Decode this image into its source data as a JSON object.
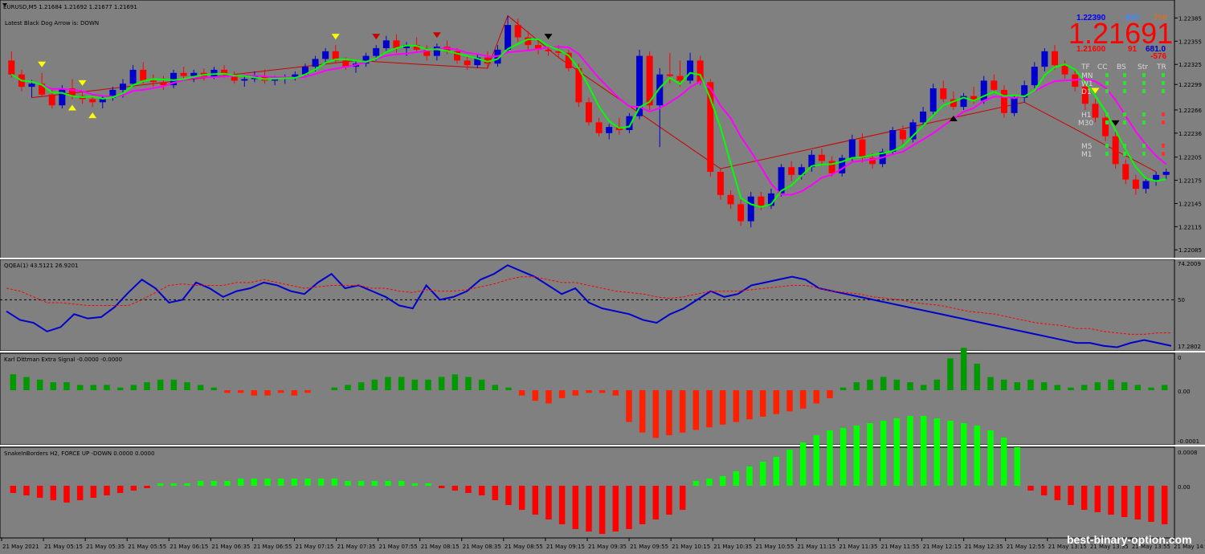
{
  "window": {
    "title": "EURUSD,M5  1.21684 1.21692 1.21677 1.21691",
    "arrow_status": "Latest Black Dog Arrow is:  DOWN"
  },
  "dashboard": {
    "top_values": [
      "1.22390",
      "-800",
      "790"
    ],
    "big_price": "1.21691",
    "second_values": [
      "1.21600",
      "91",
      "681.0"
    ],
    "third_values": [
      "-576"
    ],
    "headers": [
      "TF",
      "CC",
      "BS",
      "Str",
      "TR"
    ],
    "timeframes": [
      "MN",
      "W1",
      "D1",
      "H1",
      "M30",
      "M5",
      "M1"
    ]
  },
  "watermark": "best-binary-option.com",
  "panels": {
    "qqea": {
      "label": "QQEA(1) 43.5121 26.9201",
      "ticks": [
        "74.2009",
        "50",
        "17.2802"
      ]
    },
    "karl": {
      "label": "Karl Dittman Extra Signal -0.0000 -0.0000",
      "ticks": [
        "0",
        "0.00",
        "-0.0001"
      ]
    },
    "snake": {
      "label": "SnakeInBorders H2, FORCE UP -DOWN  0.0000 0.0000",
      "ticks": [
        "0.0008",
        "0.00"
      ]
    }
  },
  "chart_data": [
    {
      "type": "candlestick",
      "symbol": "EURUSD,M5",
      "y_ticks": [
        "1.22385",
        "1.22355",
        "1.22325",
        "1.22299",
        "1.22266",
        "1.22236",
        "1.22205",
        "1.22175",
        "1.22145",
        "1.22115",
        "1.22085"
      ],
      "ylim": [
        1.2208,
        1.224
      ],
      "colors": {
        "bull": "#0000cc",
        "bear": "#ff0000",
        "fast_ma": "#00ff00",
        "slow_ma": "#ff00ff",
        "zigzag": "#cc0000"
      },
      "candles": [
        [
          1.2233,
          1.22342,
          1.22308,
          1.22312
        ],
        [
          1.22312,
          1.22318,
          1.2229,
          1.22296
        ],
        [
          1.22296,
          1.22305,
          1.22282,
          1.223
        ],
        [
          1.223,
          1.22314,
          1.22283,
          1.22286
        ],
        [
          1.22286,
          1.22292,
          1.22268,
          1.22272
        ],
        [
          1.22272,
          1.22298,
          1.22268,
          1.22294
        ],
        [
          1.22294,
          1.22306,
          1.2228,
          1.22284
        ],
        [
          1.22284,
          1.2229,
          1.22274,
          1.2228
        ],
        [
          1.2228,
          1.22286,
          1.2227,
          1.22276
        ],
        [
          1.22276,
          1.22285,
          1.22268,
          1.22282
        ],
        [
          1.22282,
          1.22296,
          1.22278,
          1.22292
        ],
        [
          1.22292,
          1.22306,
          1.22282,
          1.223
        ],
        [
          1.223,
          1.22324,
          1.22296,
          1.22318
        ],
        [
          1.22318,
          1.22328,
          1.223,
          1.22304
        ],
        [
          1.22304,
          1.22312,
          1.22296,
          1.22302
        ],
        [
          1.22302,
          1.2231,
          1.22292,
          1.22298
        ],
        [
          1.22298,
          1.22318,
          1.22294,
          1.22314
        ],
        [
          1.22314,
          1.22322,
          1.22304,
          1.2231
        ],
        [
          1.2231,
          1.22318,
          1.22302,
          1.22314
        ],
        [
          1.22314,
          1.2232,
          1.22304,
          1.22308
        ],
        [
          1.22308,
          1.22322,
          1.22306,
          1.22318
        ],
        [
          1.22318,
          1.22324,
          1.22308,
          1.22312
        ],
        [
          1.22312,
          1.22316,
          1.223,
          1.22304
        ],
        [
          1.22304,
          1.22312,
          1.22296,
          1.22306
        ],
        [
          1.22306,
          1.22316,
          1.22302,
          1.2231
        ],
        [
          1.2231,
          1.22318,
          1.223,
          1.22304
        ],
        [
          1.22304,
          1.2231,
          1.22298,
          1.22306
        ],
        [
          1.22306,
          1.22312,
          1.223,
          1.22308
        ],
        [
          1.22308,
          1.22316,
          1.22304,
          1.22312
        ],
        [
          1.22312,
          1.22326,
          1.22308,
          1.22322
        ],
        [
          1.22322,
          1.22336,
          1.22316,
          1.22332
        ],
        [
          1.22332,
          1.22346,
          1.22326,
          1.22342
        ],
        [
          1.22342,
          1.2235,
          1.22326,
          1.2233
        ],
        [
          1.2233,
          1.22334,
          1.22318,
          1.22322
        ],
        [
          1.22322,
          1.2233,
          1.22314,
          1.22326
        ],
        [
          1.22326,
          1.2234,
          1.22322,
          1.22336
        ],
        [
          1.22336,
          1.2235,
          1.2233,
          1.22346
        ],
        [
          1.22346,
          1.22362,
          1.22342,
          1.22356
        ],
        [
          1.22356,
          1.22364,
          1.2234,
          1.22346
        ],
        [
          1.22346,
          1.22354,
          1.22336,
          1.2235
        ],
        [
          1.2235,
          1.2236,
          1.2234,
          1.22344
        ],
        [
          1.22344,
          1.2235,
          1.2233,
          1.22336
        ],
        [
          1.22336,
          1.22352,
          1.2233,
          1.22348
        ],
        [
          1.22348,
          1.22356,
          1.22338,
          1.22342
        ],
        [
          1.22342,
          1.22346,
          1.22326,
          1.2233
        ],
        [
          1.2233,
          1.22336,
          1.22318,
          1.22324
        ],
        [
          1.22324,
          1.22338,
          1.2232,
          1.22334
        ],
        [
          1.22334,
          1.22342,
          1.2232,
          1.22326
        ],
        [
          1.22326,
          1.2235,
          1.22322,
          1.22344
        ],
        [
          1.22344,
          1.22388,
          1.2234,
          1.22376
        ],
        [
          1.22376,
          1.22384,
          1.22354,
          1.2236
        ],
        [
          1.2236,
          1.22368,
          1.22344,
          1.2235
        ],
        [
          1.2235,
          1.22356,
          1.22338,
          1.22344
        ],
        [
          1.22344,
          1.2235,
          1.22336,
          1.22342
        ],
        [
          1.22342,
          1.2235,
          1.22334,
          1.2234
        ],
        [
          1.2234,
          1.22344,
          1.22316,
          1.2232
        ],
        [
          1.2232,
          1.22326,
          1.2227,
          1.22276
        ],
        [
          1.22276,
          1.22282,
          1.22246,
          1.2225
        ],
        [
          1.2225,
          1.22256,
          1.22232,
          1.22236
        ],
        [
          1.22236,
          1.22248,
          1.22228,
          1.22244
        ],
        [
          1.22244,
          1.22256,
          1.22234,
          1.2224
        ],
        [
          1.2224,
          1.22262,
          1.22236,
          1.22258
        ],
        [
          1.22258,
          1.22344,
          1.22254,
          1.22336
        ],
        [
          1.22336,
          1.22342,
          1.22266,
          1.22272
        ],
        [
          1.22272,
          1.2232,
          1.22218,
          1.22312
        ],
        [
          1.22312,
          1.2234,
          1.223,
          1.2231
        ],
        [
          1.2231,
          1.2233,
          1.22296,
          1.22304
        ],
        [
          1.22304,
          1.2234,
          1.223,
          1.2233
        ],
        [
          1.2233,
          1.22336,
          1.22298,
          1.22302
        ],
        [
          1.22302,
          1.22306,
          1.2218,
          1.22186
        ],
        [
          1.22186,
          1.2219,
          1.2215,
          1.22156
        ],
        [
          1.22156,
          1.22162,
          1.22138,
          1.22144
        ],
        [
          1.22144,
          1.2215,
          1.22116,
          1.22122
        ],
        [
          1.22122,
          1.2216,
          1.22114,
          1.22154
        ],
        [
          1.22154,
          1.2216,
          1.22136,
          1.22142
        ],
        [
          1.22142,
          1.22164,
          1.22138,
          1.22158
        ],
        [
          1.22158,
          1.22196,
          1.22154,
          1.22192
        ],
        [
          1.22192,
          1.222,
          1.22174,
          1.22182
        ],
        [
          1.22182,
          1.22196,
          1.22176,
          1.22192
        ],
        [
          1.22192,
          1.22214,
          1.22186,
          1.22208
        ],
        [
          1.22208,
          1.22216,
          1.22196,
          1.222
        ],
        [
          1.222,
          1.22206,
          1.2218,
          1.22184
        ],
        [
          1.22184,
          1.22208,
          1.2218,
          1.22204
        ],
        [
          1.22204,
          1.22234,
          1.222,
          1.22228
        ],
        [
          1.22228,
          1.22236,
          1.22198,
          1.22204
        ],
        [
          1.22204,
          1.2221,
          1.2219,
          1.22196
        ],
        [
          1.22196,
          1.22216,
          1.22192,
          1.22212
        ],
        [
          1.22212,
          1.22244,
          1.22208,
          1.2224
        ],
        [
          1.2224,
          1.22246,
          1.22222,
          1.22228
        ],
        [
          1.22228,
          1.22254,
          1.22224,
          1.2225
        ],
        [
          1.2225,
          1.2227,
          1.22244,
          1.22264
        ],
        [
          1.22264,
          1.223,
          1.22258,
          1.22294
        ],
        [
          1.22294,
          1.22304,
          1.22276,
          1.2228
        ],
        [
          1.2228,
          1.2229,
          1.22266,
          1.2227
        ],
        [
          1.2227,
          1.22288,
          1.22266,
          1.22284
        ],
        [
          1.22284,
          1.22296,
          1.22274,
          1.22278
        ],
        [
          1.22278,
          1.2231,
          1.22274,
          1.22304
        ],
        [
          1.22304,
          1.22312,
          1.22288,
          1.22292
        ],
        [
          1.22292,
          1.22298,
          1.22256,
          1.22262
        ],
        [
          1.22262,
          1.22286,
          1.22258,
          1.22282
        ],
        [
          1.22282,
          1.22304,
          1.22276,
          1.22298
        ],
        [
          1.22298,
          1.22328,
          1.22294,
          1.22322
        ],
        [
          1.22322,
          1.22346,
          1.22316,
          1.22342
        ],
        [
          1.22342,
          1.2235,
          1.22318,
          1.22324
        ],
        [
          1.22324,
          1.2233,
          1.22306,
          1.22312
        ],
        [
          1.22312,
          1.2232,
          1.2229,
          1.22296
        ],
        [
          1.22296,
          1.22306,
          1.22266,
          1.22274
        ],
        [
          1.22274,
          1.2228,
          1.2225,
          1.22256
        ],
        [
          1.22256,
          1.22262,
          1.22226,
          1.22232
        ],
        [
          1.22232,
          1.22238,
          1.2219,
          1.22196
        ],
        [
          1.22196,
          1.22202,
          1.2217,
          1.22176
        ],
        [
          1.22176,
          1.22182,
          1.22156,
          1.22164
        ],
        [
          1.22164,
          1.22178,
          1.22158,
          1.22174
        ],
        [
          1.22174,
          1.22186,
          1.22168,
          1.22182
        ],
        [
          1.22182,
          1.2219,
          1.22176,
          1.22186
        ]
      ]
    },
    {
      "type": "line",
      "name": "QQEA(1)",
      "ylim": [
        17.2802,
        74.2009
      ],
      "series": [
        {
          "name": "qqea-main",
          "color": "#0000cc",
          "values": [
            42,
            36,
            34,
            28,
            31,
            40,
            37,
            38,
            45,
            55,
            64,
            58,
            48,
            50,
            62,
            58,
            52,
            56,
            58,
            62,
            60,
            56,
            54,
            62,
            68,
            58,
            60,
            56,
            52,
            46,
            44,
            60,
            50,
            52,
            56,
            64,
            68,
            74,
            70,
            66,
            60,
            54,
            58,
            48,
            44,
            42,
            40,
            36,
            34,
            40,
            44,
            50,
            56,
            52,
            54,
            60,
            62,
            64,
            66,
            64,
            58,
            56,
            54,
            52,
            50,
            48,
            46,
            44,
            42,
            40,
            38,
            36,
            34,
            32,
            30,
            28,
            26,
            24,
            22,
            20,
            20,
            18,
            17,
            20,
            22,
            20,
            18
          ]
        },
        {
          "name": "qqea-signal",
          "color": "#ff0000",
          "values": [
            58,
            56,
            52,
            48,
            48,
            47,
            46,
            46,
            46,
            46,
            50,
            55,
            60,
            61,
            60,
            60,
            60,
            62,
            62,
            64,
            62,
            60,
            58,
            59,
            60,
            60,
            60,
            58,
            58,
            56,
            55,
            57,
            56,
            56,
            57,
            59,
            61,
            64,
            66,
            66,
            64,
            62,
            62,
            60,
            58,
            56,
            55,
            54,
            52,
            51,
            52,
            54,
            56,
            56,
            56,
            57,
            58,
            59,
            60,
            60,
            58,
            56,
            55,
            54,
            52,
            51,
            50,
            48,
            47,
            46,
            44,
            42,
            41,
            40,
            38,
            36,
            34,
            33,
            32,
            30,
            30,
            28,
            27,
            26,
            26,
            27,
            27
          ]
        }
      ]
    },
    {
      "type": "bar",
      "name": "Karl Dittman Extra Signal",
      "positive_color": "#009900",
      "negative_color": "#ff2000",
      "values": [
        0.6,
        0.5,
        0.4,
        0.3,
        0.3,
        0.2,
        0.2,
        0.2,
        0.1,
        0.2,
        0.3,
        0.4,
        0.4,
        0.3,
        0.2,
        0.1,
        -0.1,
        -0.1,
        -0.2,
        -0.2,
        -0.1,
        -0.2,
        -0.1,
        0.0,
        0.1,
        0.2,
        0.3,
        0.4,
        0.5,
        0.5,
        0.4,
        0.4,
        0.5,
        0.6,
        0.5,
        0.4,
        0.2,
        0.1,
        -0.2,
        -0.4,
        -0.5,
        -0.3,
        -0.2,
        -0.1,
        -0.1,
        -0.2,
        -1.2,
        -1.6,
        -1.8,
        -1.7,
        -1.6,
        -1.5,
        -1.4,
        -1.3,
        -1.2,
        -1.1,
        -1.0,
        -0.9,
        -0.8,
        -0.7,
        -0.5,
        -0.3,
        0.1,
        0.3,
        0.4,
        0.5,
        0.4,
        0.3,
        0.2,
        0.4,
        1.2,
        1.6,
        1.0,
        0.5,
        0.4,
        0.3,
        0.4,
        0.3,
        0.2,
        0.1,
        0.2,
        0.3,
        0.4,
        0.3,
        0.2,
        0.1,
        0.2
      ]
    },
    {
      "type": "bar",
      "name": "SnakeInBorders H2",
      "positive_color": "#00ff00",
      "negative_color": "#ff0000",
      "values": [
        -0.3,
        -0.4,
        -0.5,
        -0.6,
        -0.7,
        -0.6,
        -0.5,
        -0.4,
        -0.3,
        -0.2,
        -0.1,
        0.1,
        0.1,
        0.1,
        0.2,
        0.2,
        0.2,
        0.3,
        0.3,
        0.3,
        0.3,
        0.3,
        0.3,
        0.3,
        0.3,
        0.2,
        0.2,
        0.2,
        0.2,
        0.2,
        0.1,
        0.1,
        -0.1,
        -0.2,
        -0.3,
        -0.4,
        -0.6,
        -0.8,
        -1.0,
        -1.2,
        -1.4,
        -1.6,
        -1.8,
        -1.9,
        -2.0,
        -1.9,
        -1.8,
        -1.6,
        -1.4,
        -1.2,
        -1.0,
        0.2,
        0.3,
        0.4,
        0.6,
        0.8,
        1.0,
        1.2,
        1.5,
        1.8,
        2.1,
        2.3,
        2.4,
        2.5,
        2.6,
        2.7,
        2.8,
        2.9,
        2.9,
        2.8,
        2.7,
        2.6,
        2.5,
        2.3,
        2.0,
        1.6,
        -0.2,
        -0.4,
        -0.6,
        -0.8,
        -1.0,
        -1.1,
        -1.2,
        -1.3,
        -1.4,
        -1.5,
        -1.6
      ]
    }
  ],
  "time_axis": [
    "21 May 2021",
    "21 May 05:15",
    "21 May 05:35",
    "21 May 05:55",
    "21 May 06:15",
    "21 May 06:35",
    "21 May 06:55",
    "21 May 07:15",
    "21 May 07:35",
    "21 May 07:55",
    "21 May 08:15",
    "21 May 08:35",
    "21 May 08:55",
    "21 May 09:15",
    "21 May 09:35",
    "21 May 09:55",
    "21 May 10:15",
    "21 May 10:35",
    "21 May 10:55",
    "21 May 11:15",
    "21 May 11:35",
    "21 May 11:55",
    "21 May 12:15",
    "21 May 12:35",
    "21 May 12:55",
    "21 May 13:15",
    "21 May 13:35",
    "21 May 13:55",
    "21 May 14:"
  ]
}
